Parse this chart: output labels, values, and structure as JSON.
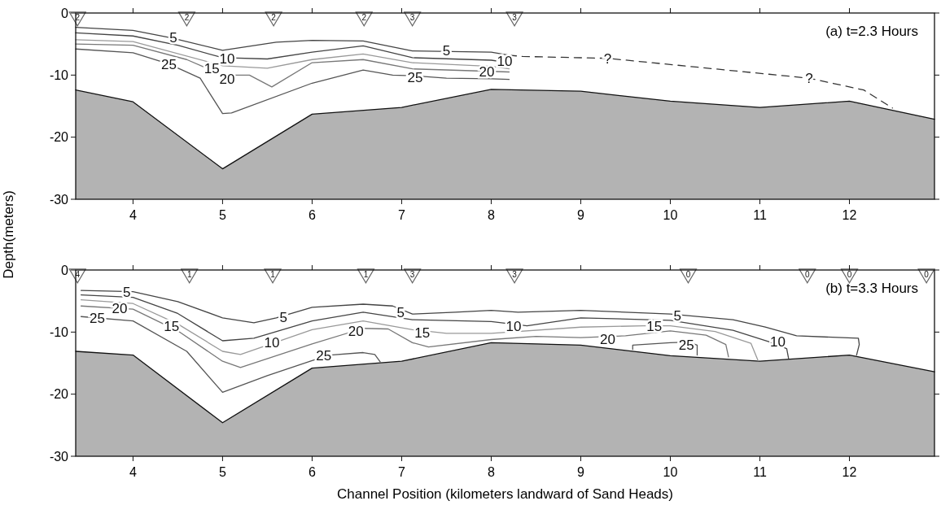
{
  "chart_data": [
    {
      "type": "line",
      "title": "(a) t=2.3 Hours",
      "ylabel": "Depth(meters)",
      "xlim": [
        3.36,
        12.95
      ],
      "ylim": [
        -30,
        0
      ],
      "xticks": [
        4,
        5,
        6,
        7,
        8,
        9,
        10,
        11,
        12
      ],
      "yticks": [
        0,
        -10,
        -20,
        -30
      ],
      "grid": false,
      "series": [
        {
          "type": "line",
          "color": "#111111",
          "x": [
            3.36,
            4,
            5,
            6,
            7,
            8,
            9,
            10,
            11,
            12,
            12.95
          ],
          "values": [
            -12.4,
            -14.3,
            -25.1,
            -16.3,
            -15.2,
            -12.3,
            -12.6,
            -14.2,
            -15.2,
            -14.2,
            -17.1
          ],
          "lower": [
            -30,
            -30,
            -30,
            -30,
            -30,
            -30,
            -30,
            -30,
            -30,
            -30,
            -30
          ],
          "upper": [
            -12.4,
            -14.3,
            -25.1,
            -16.3,
            -15.2,
            -12.3,
            -12.6,
            -14.2,
            -15.2,
            -14.2,
            -17.1
          ]
        },
        {
          "color": "#444444",
          "x": [
            3.36,
            4,
            4.43,
            5,
            5.6,
            6,
            6.57,
            7.12,
            8,
            8.2
          ],
          "values": [
            -2.3,
            -2.8,
            -4.0,
            -6.0,
            -4.7,
            -4.4,
            -4.5,
            -6.1,
            -6.3,
            -6.8
          ]
        },
        {
          "type": "line",
          "color": "#444444",
          "x": [
            3.36,
            4,
            4.5,
            5,
            5.5,
            6,
            6.57,
            7.12,
            8,
            8.2
          ],
          "values": [
            -3.2,
            -3.7,
            -5.2,
            -7.2,
            -7.4,
            -6.3,
            -5.3,
            -7.2,
            -7.6,
            -8.0
          ]
        },
        {
          "type": "line",
          "color": "#999999",
          "x": [
            3.36,
            4,
            5,
            5.5,
            6,
            6.57,
            7.12,
            8,
            8.2
          ],
          "values": [
            -4.3,
            -4.6,
            -8.5,
            -8.9,
            -7.5,
            -6.6,
            -8.0,
            -8.6,
            -9.0
          ]
        },
        {
          "type": "line",
          "color": "#777777",
          "x": [
            3.36,
            4,
            4.6,
            5,
            5.3,
            5.55,
            6,
            6.57,
            7.12,
            8,
            8.2
          ],
          "values": [
            -5.0,
            -5.2,
            -7.5,
            -10.0,
            -10.0,
            -11.9,
            -8.0,
            -7.5,
            -9.0,
            -9.4,
            -9.5
          ]
        },
        {
          "type": "line",
          "color": "#555555",
          "x": [
            3.36,
            4,
            4.4,
            4.75,
            5,
            5.1,
            6,
            6.57,
            6.9,
            7.12,
            7.5,
            8,
            8.2
          ],
          "values": [
            -5.8,
            -6.4,
            -8.2,
            -10.5,
            -16.2,
            -16.1,
            -11.3,
            -9.2,
            -10.0,
            -10.1,
            -10.5,
            -10.6,
            -10.7
          ]
        },
        {
          "type": "line",
          "color": "#333333",
          "line_style": "dashed",
          "x": [
            8.2,
            8.35,
            9.3,
            11.55,
            12.16,
            12.48
          ],
          "values": [
            -6.8,
            -7.0,
            -7.3,
            -10.5,
            -12.4,
            -15.3
          ]
        },
        {
          "type": "scatter",
          "marker": "triangle",
          "color": "#666666",
          "x": [
            3.38,
            4.6,
            5.57,
            6.58,
            7.12,
            8.26
          ],
          "values": [
            -0.9,
            -0.9,
            -0.9,
            -0.9,
            -0.9,
            -0.9
          ]
        }
      ],
      "annotations": [
        {
          "text": "2",
          "x": 3.38,
          "y": -0.9
        },
        {
          "text": "2",
          "x": 4.6,
          "y": -0.9
        },
        {
          "text": "2",
          "x": 5.57,
          "y": -0.9
        },
        {
          "text": "2",
          "x": 6.58,
          "y": -0.9
        },
        {
          "text": "3",
          "x": 7.12,
          "y": -0.9
        },
        {
          "text": "3",
          "x": 8.26,
          "y": -0.9
        },
        {
          "text": "5",
          "x": 4.45,
          "y": -4.0
        },
        {
          "text": "10",
          "x": 5.05,
          "y": -7.4
        },
        {
          "text": "15",
          "x": 4.88,
          "y": -8.9
        },
        {
          "text": "20",
          "x": 5.05,
          "y": -10.6
        },
        {
          "text": "25",
          "x": 4.4,
          "y": -8.2
        },
        {
          "text": "5",
          "x": 7.5,
          "y": -6.0
        },
        {
          "text": "10",
          "x": 8.15,
          "y": -7.8
        },
        {
          "text": "20",
          "x": 7.95,
          "y": -9.4
        },
        {
          "text": "25",
          "x": 7.15,
          "y": -10.3
        },
        {
          "text": "?",
          "x": 9.3,
          "y": -7.4
        },
        {
          "text": "?",
          "x": 11.55,
          "y": -10.5
        }
      ]
    },
    {
      "type": "line",
      "title": "(b) t=3.3 Hours",
      "xlabel": "Channel Position (kilometers landward of Sand Heads)",
      "xlim": [
        3.36,
        12.95
      ],
      "ylim": [
        -30,
        0
      ],
      "xticks": [
        4,
        5,
        6,
        7,
        8,
        9,
        10,
        11,
        12
      ],
      "yticks": [
        0,
        -10,
        -20,
        -30
      ],
      "grid": false,
      "series": [
        {
          "type": "line",
          "color": "#111111",
          "x": [
            3.36,
            4,
            5,
            6,
            7,
            8,
            9,
            10,
            11,
            12,
            12.95
          ],
          "values": [
            -13.1,
            -13.7,
            -24.6,
            -15.8,
            -14.7,
            -11.7,
            -12.1,
            -13.8,
            -14.7,
            -13.7,
            -16.4
          ],
          "lower": [
            -30,
            -30,
            -30,
            -30,
            -30,
            -30,
            -30,
            -30,
            -30,
            -30,
            -30
          ],
          "upper": [
            -13.1,
            -13.7,
            -24.6,
            -15.8,
            -14.7,
            -11.7,
            -12.1,
            -13.8,
            -14.7,
            -13.7,
            -16.4
          ]
        },
        {
          "color": "#444444",
          "x": [
            3.42,
            4,
            4.5,
            5,
            5.35,
            5.6,
            6,
            6.57,
            6.9,
            7.12,
            7.6,
            8,
            8.3,
            9,
            10,
            10.7,
            11.06,
            11.41,
            12.1,
            12.11,
            12.08
          ],
          "values": [
            -3.3,
            -3.5,
            -5.1,
            -7.7,
            -8.5,
            -7.7,
            -6.0,
            -5.5,
            -5.8,
            -7.1,
            -6.8,
            -6.5,
            -6.8,
            -6.5,
            -7.1,
            -8.0,
            -9.2,
            -10.6,
            -11.0,
            -12.0,
            -13.7
          ]
        },
        {
          "type": "line",
          "color": "#444444",
          "x": [
            3.42,
            4,
            4.5,
            5,
            5.35,
            6,
            6.57,
            7.12,
            8,
            8.4,
            9,
            10,
            10.7,
            11.2,
            11.3,
            11.32
          ],
          "values": [
            -4.0,
            -4.4,
            -7.0,
            -11.4,
            -11.0,
            -8.2,
            -6.8,
            -8.0,
            -8.3,
            -9.0,
            -7.7,
            -8.1,
            -9.7,
            -12.0,
            -12.7,
            -14.2
          ]
        },
        {
          "type": "line",
          "color": "#999999",
          "x": [
            3.42,
            4,
            4.5,
            5,
            5.2,
            6,
            6.57,
            7.12,
            7.5,
            8,
            9,
            9.7,
            10,
            10.5,
            10.9,
            10.98
          ],
          "values": [
            -4.8,
            -5.4,
            -8.7,
            -13.1,
            -13.6,
            -9.6,
            -8.2,
            -9.6,
            -10.2,
            -10.2,
            -9.2,
            -9.0,
            -9.0,
            -9.9,
            -11.8,
            -14.6
          ]
        },
        {
          "type": "line",
          "color": "#777777",
          "x": [
            3.42,
            4,
            4.5,
            5,
            5.2,
            6,
            6.57,
            6.85,
            7.12,
            7.3,
            8,
            8.5,
            9,
            9.5,
            10,
            10.4,
            10.62,
            10.65
          ],
          "values": [
            -5.8,
            -6.3,
            -9.8,
            -14.7,
            -15.7,
            -11.9,
            -9.4,
            -9.5,
            -11.7,
            -12.4,
            -11.2,
            -10.7,
            -10.9,
            -10.6,
            -9.8,
            -10.5,
            -12.0,
            -14.0
          ]
        },
        {
          "type": "line",
          "color": "#555555",
          "x": [
            3.42,
            4,
            4.6,
            5,
            5.5,
            6,
            6.2,
            6.57,
            6.7,
            6.76
          ],
          "values": [
            -7.5,
            -8.2,
            -13.1,
            -19.7,
            -17.0,
            -14.6,
            -13.7,
            -13.3,
            -13.6,
            -14.8
          ]
        },
        {
          "type": "line",
          "color": "#555555",
          "x": [
            9.58,
            9.58,
            10,
            10.2,
            10.3,
            10.3
          ],
          "values": [
            -12.8,
            -12.1,
            -11.7,
            -11.6,
            -12.1,
            -13.7
          ]
        },
        {
          "type": "scatter",
          "marker": "triangle",
          "color": "#666666",
          "x": [
            3.38,
            4.63,
            5.56,
            6.6,
            7.12,
            8.26,
            10.2,
            11.53,
            12.0,
            12.86
          ],
          "values": [
            -0.9,
            -0.9,
            -0.9,
            -0.9,
            -0.9,
            -0.9,
            -0.9,
            -0.9,
            -0.9,
            -0.9
          ]
        }
      ],
      "annotations": [
        {
          "text": "4",
          "x": 3.38,
          "y": -0.9
        },
        {
          "text": "1",
          "x": 4.63,
          "y": -0.9
        },
        {
          "text": "1",
          "x": 5.56,
          "y": -0.9
        },
        {
          "text": "1",
          "x": 6.6,
          "y": -0.9
        },
        {
          "text": "3",
          "x": 7.12,
          "y": -0.9
        },
        {
          "text": "3",
          "x": 8.26,
          "y": -0.9
        },
        {
          "text": "0",
          "x": 10.2,
          "y": -0.9
        },
        {
          "text": "0",
          "x": 11.53,
          "y": -0.9
        },
        {
          "text": "0",
          "x": 12.0,
          "y": -0.9
        },
        {
          "text": "0",
          "x": 12.86,
          "y": -0.9
        },
        {
          "text": "5",
          "x": 3.93,
          "y": -3.5
        },
        {
          "text": "20",
          "x": 3.85,
          "y": -6.1
        },
        {
          "text": "25",
          "x": 3.6,
          "y": -7.8
        },
        {
          "text": "15",
          "x": 4.43,
          "y": -9.1
        },
        {
          "text": "5",
          "x": 5.68,
          "y": -7.6
        },
        {
          "text": "10",
          "x": 5.55,
          "y": -11.7
        },
        {
          "text": "20",
          "x": 6.49,
          "y": -9.8
        },
        {
          "text": "25",
          "x": 6.13,
          "y": -13.7
        },
        {
          "text": "5",
          "x": 6.99,
          "y": -6.8
        },
        {
          "text": "15",
          "x": 7.23,
          "y": -10.1
        },
        {
          "text": "10",
          "x": 8.25,
          "y": -9.0
        },
        {
          "text": "15",
          "x": 9.82,
          "y": -9.0
        },
        {
          "text": "20",
          "x": 9.3,
          "y": -11.2
        },
        {
          "text": "5",
          "x": 10.08,
          "y": -7.3
        },
        {
          "text": "25",
          "x": 10.18,
          "y": -12.0
        },
        {
          "text": "10",
          "x": 11.2,
          "y": -11.5
        }
      ]
    }
  ]
}
